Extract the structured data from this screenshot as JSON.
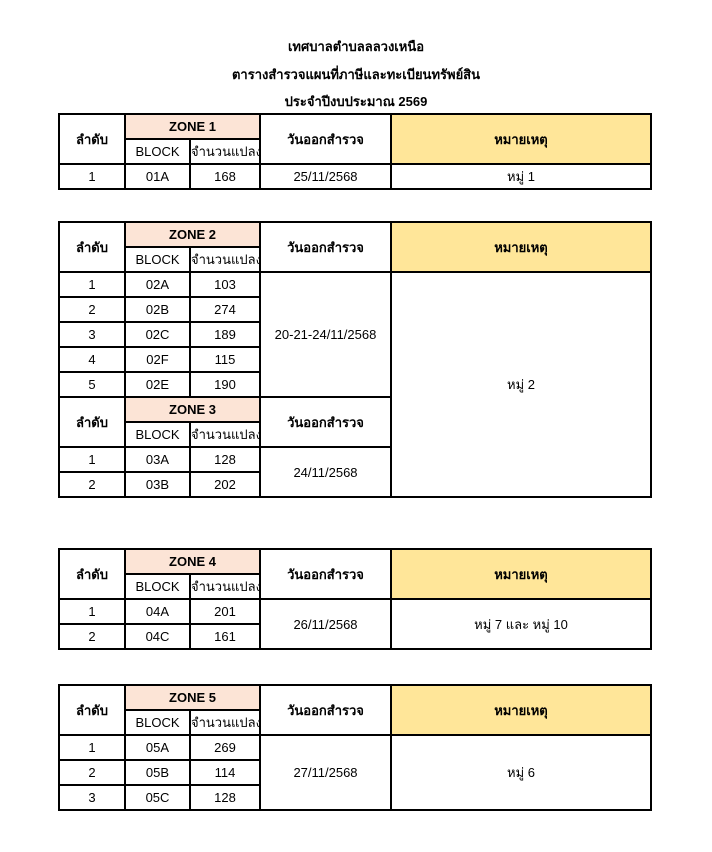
{
  "header": {
    "line1": "เทศบาลตำบลลลวงเหนือ",
    "line2": "ตารางสำรวจแผนที่ภาษีและทะเบียนทรัพย์สิน",
    "line3": "ประจำปีงบประมาณ 2569"
  },
  "columns": {
    "order": "ลำดับ",
    "block": "BLOCK",
    "parcels": "จำนวนแปลง",
    "date": "วันออกสำรวจ",
    "remark": "หมายเหตุ"
  },
  "colors": {
    "zone_header": "#FCE4D6",
    "remark_header": "#FFE699"
  },
  "tables": [
    {
      "remark": "หมู่ 1",
      "groups": [
        {
          "zone": "ZONE 1",
          "date": "25/11/2568",
          "rows": [
            [
              "1",
              "01A",
              "168"
            ]
          ]
        }
      ]
    },
    {
      "remark": "หมู่ 2",
      "groups": [
        {
          "zone": "ZONE 2",
          "date": "20-21-24/11/2568",
          "rows": [
            [
              "1",
              "02A",
              "103"
            ],
            [
              "2",
              "02B",
              "274"
            ],
            [
              "3",
              "02C",
              "189"
            ],
            [
              "4",
              "02F",
              "115"
            ],
            [
              "5",
              "02E",
              "190"
            ]
          ]
        },
        {
          "zone": "ZONE 3",
          "date": "24/11/2568",
          "rows": [
            [
              "1",
              "03A",
              "128"
            ],
            [
              "2",
              "03B",
              "202"
            ]
          ]
        }
      ]
    },
    {
      "remark": "หมู่ 7 และ หมู่ 10",
      "groups": [
        {
          "zone": "ZONE 4",
          "date": "26/11/2568",
          "rows": [
            [
              "1",
              "04A",
              "201"
            ],
            [
              "2",
              "04C",
              "161"
            ]
          ]
        }
      ]
    },
    {
      "remark": "หมู่ 6",
      "groups": [
        {
          "zone": "ZONE 5",
          "date": "27/11/2568",
          "rows": [
            [
              "1",
              "05A",
              "269"
            ],
            [
              "2",
              "05B",
              "114"
            ],
            [
              "3",
              "05C",
              "128"
            ]
          ]
        }
      ]
    }
  ]
}
